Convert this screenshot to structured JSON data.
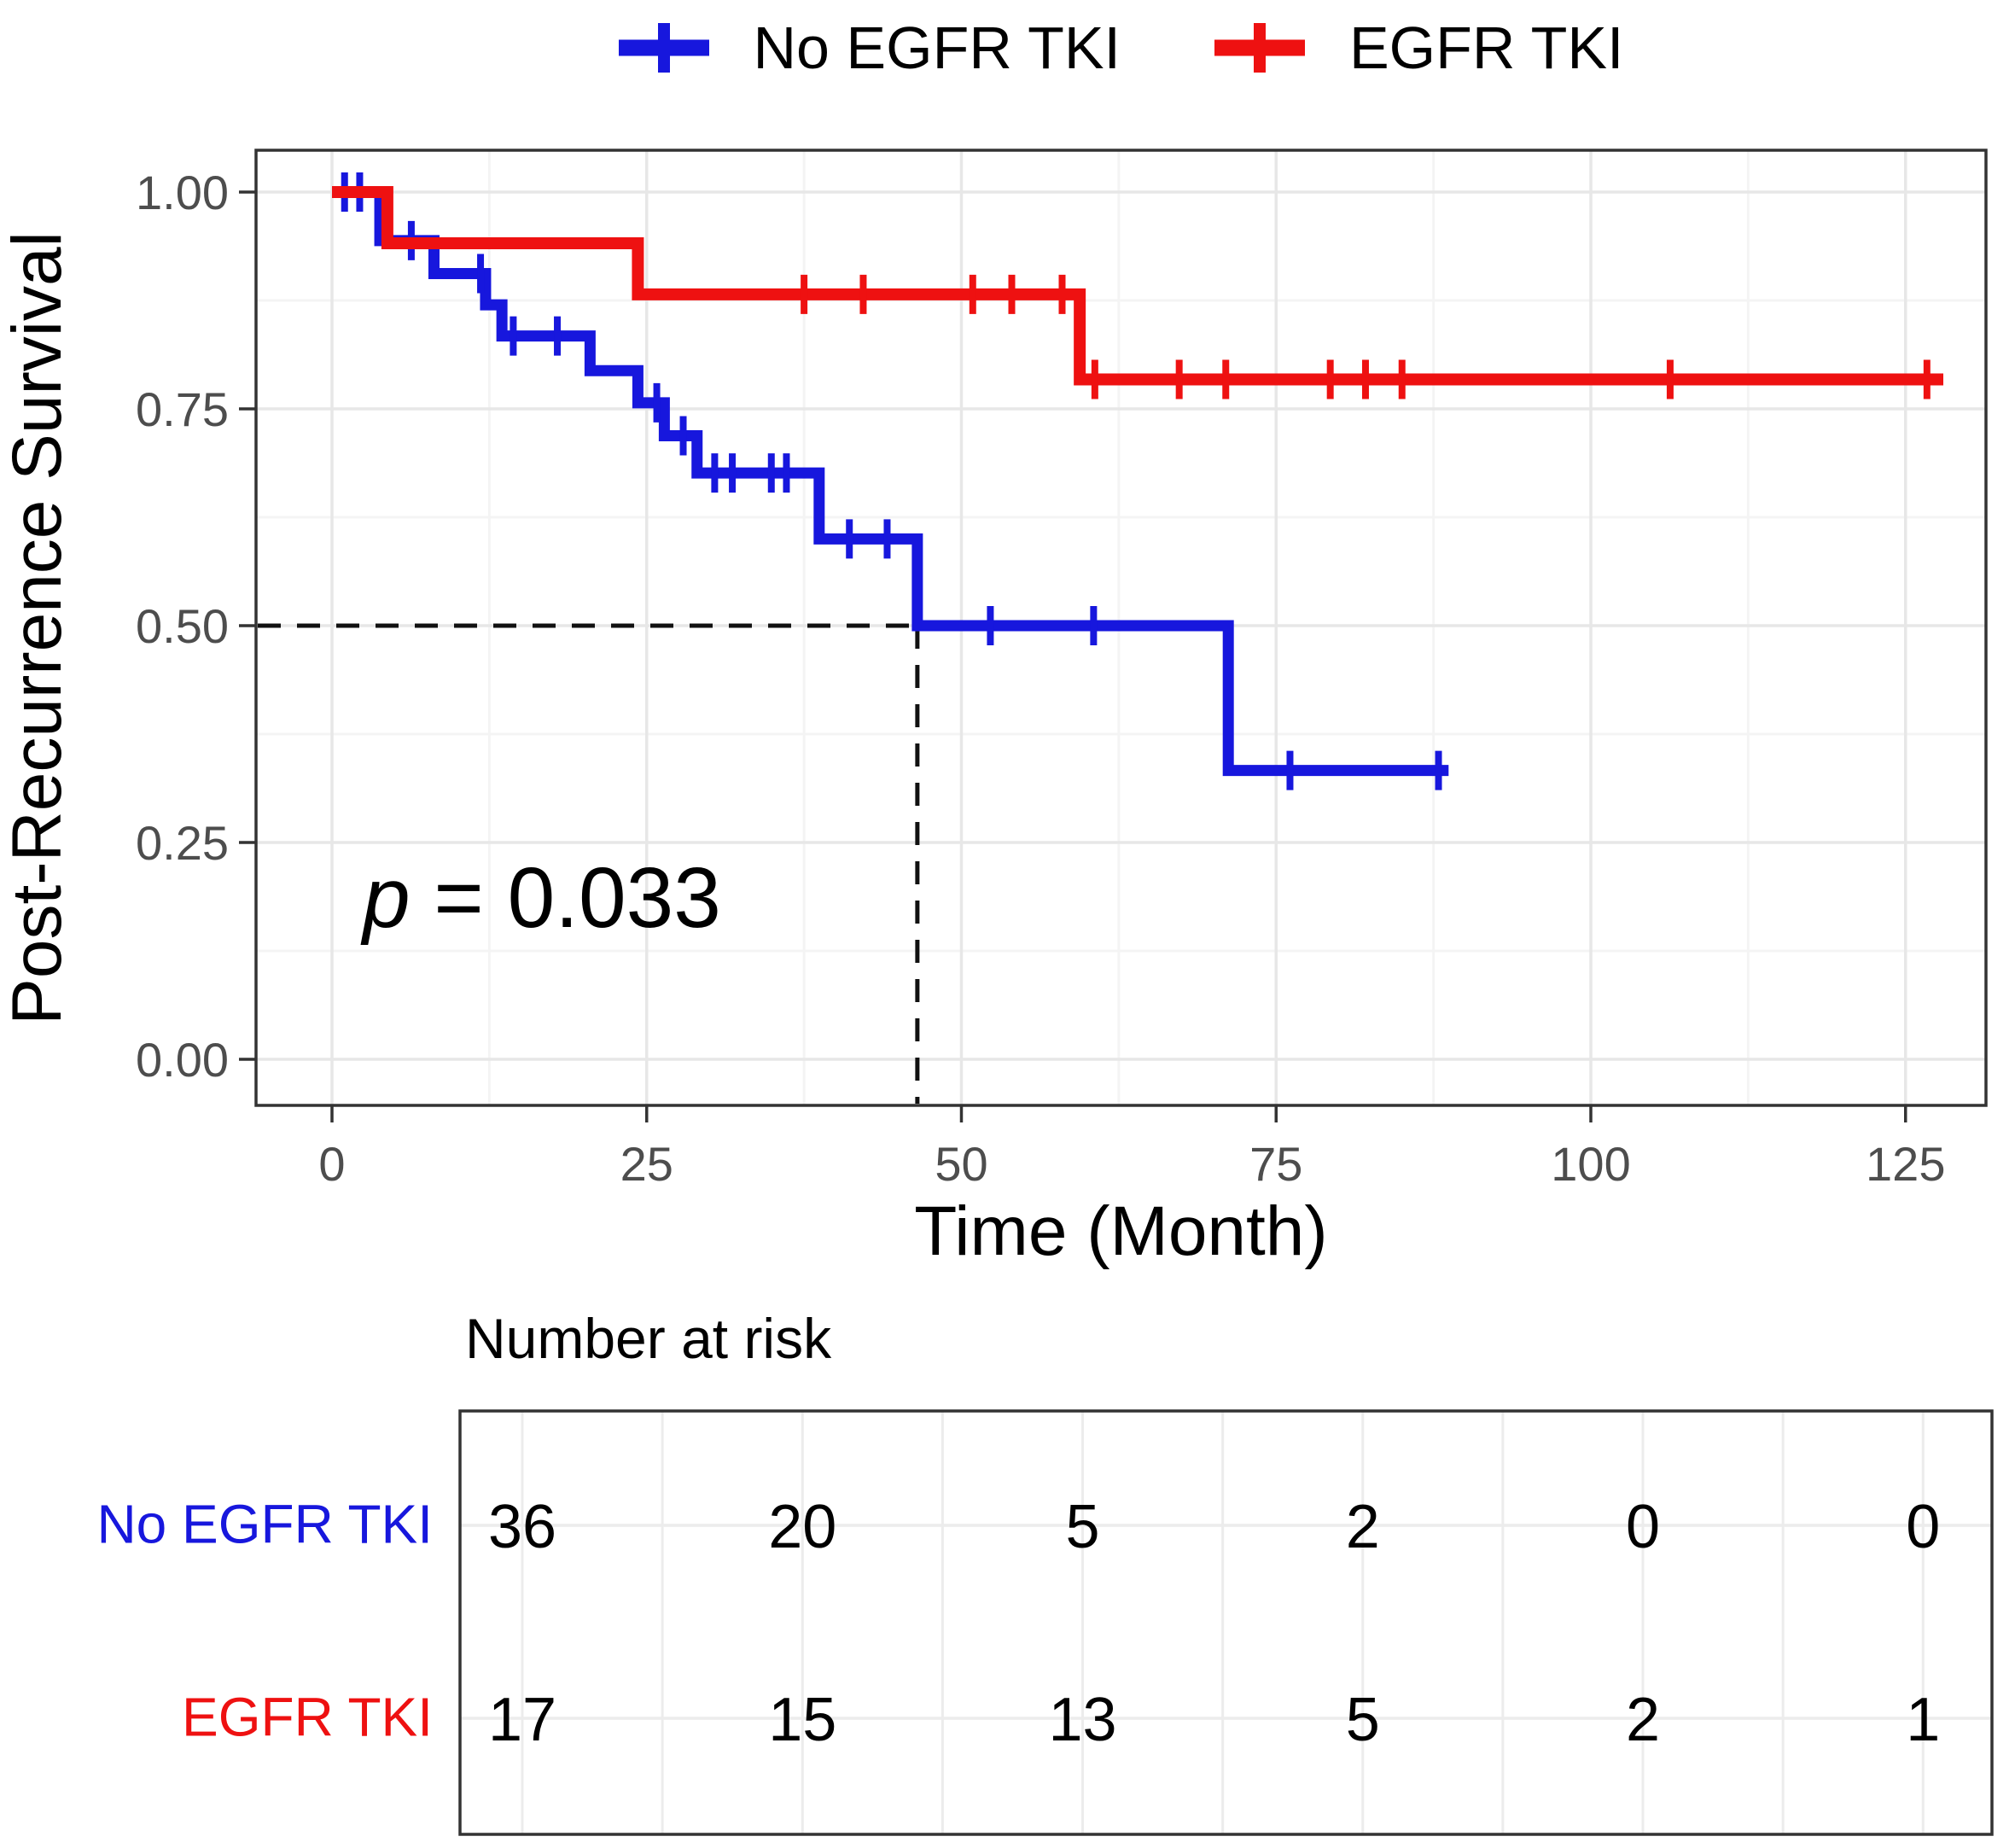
{
  "figure": {
    "background": "#ffffff"
  },
  "legend": {
    "items": [
      {
        "label": "No EGFR TKI",
        "color": "#1717dd"
      },
      {
        "label": "EGFR TKI",
        "color": "#ee1111"
      }
    ]
  },
  "chart_data": {
    "type": "line",
    "subtype": "kaplan-meier-step",
    "title": "",
    "xlabel": "Time (Month)",
    "ylabel": "Post-Recurrence Survival",
    "x_ticks": [
      0,
      25,
      50,
      75,
      100,
      125
    ],
    "x_tick_labels": [
      "0",
      "25",
      "50",
      "75",
      "100",
      "125"
    ],
    "y_ticks": [
      0,
      0.25,
      0.5,
      0.75,
      1
    ],
    "y_tick_labels": [
      "0.00",
      "0.25",
      "0.50",
      "0.75",
      "1.00"
    ],
    "xlim": [
      -6,
      131.4
    ],
    "ylim": [
      0,
      1
    ],
    "grid": true,
    "legend_position": "top",
    "p_label": {
      "italic": "p",
      "rest": " = 0.033"
    },
    "median_reference": {
      "time": 46.5,
      "survival": 0.5
    },
    "series": [
      {
        "name": "No EGFR TKI",
        "color": "#1717dd",
        "steps": [
          [
            0,
            1.0
          ],
          [
            3.8,
            0.944
          ],
          [
            8.1,
            0.906
          ],
          [
            12.2,
            0.87
          ],
          [
            13.5,
            0.834
          ],
          [
            20.5,
            0.794
          ],
          [
            24.3,
            0.757
          ],
          [
            26.4,
            0.719
          ],
          [
            29.0,
            0.676
          ],
          [
            38.7,
            0.6
          ],
          [
            46.5,
            0.5
          ],
          [
            71.2,
            0.333
          ]
        ],
        "end_time": 88.7,
        "censor_marks": [
          [
            1.0,
            1.0
          ],
          [
            2.2,
            1.0
          ],
          [
            6.3,
            0.944
          ],
          [
            11.8,
            0.906
          ],
          [
            14.4,
            0.834
          ],
          [
            17.9,
            0.834
          ],
          [
            25.8,
            0.757
          ],
          [
            27.9,
            0.719
          ],
          [
            30.4,
            0.676
          ],
          [
            31.8,
            0.676
          ],
          [
            34.9,
            0.676
          ],
          [
            36.1,
            0.676
          ],
          [
            41.1,
            0.6
          ],
          [
            44.1,
            0.6
          ],
          [
            52.3,
            0.5
          ],
          [
            60.5,
            0.5
          ],
          [
            76.1,
            0.333
          ],
          [
            87.9,
            0.333
          ]
        ]
      },
      {
        "name": "EGFR TKI",
        "color": "#ee1111",
        "steps": [
          [
            0,
            1.0
          ],
          [
            4.4,
            0.941
          ],
          [
            24.3,
            0.882
          ],
          [
            59.4,
            0.784
          ]
        ],
        "end_time": 128.0,
        "censor_marks": [
          [
            37.5,
            0.882
          ],
          [
            42.2,
            0.882
          ],
          [
            50.9,
            0.882
          ],
          [
            54.0,
            0.882
          ],
          [
            58.0,
            0.882
          ],
          [
            60.6,
            0.784
          ],
          [
            67.3,
            0.784
          ],
          [
            71.0,
            0.784
          ],
          [
            79.3,
            0.784
          ],
          [
            82.1,
            0.784
          ],
          [
            85.0,
            0.784
          ],
          [
            106.3,
            0.784
          ],
          [
            126.7,
            0.784
          ]
        ]
      }
    ],
    "risk_table": {
      "title": "Number at risk",
      "times": [
        0,
        25,
        50,
        75,
        100,
        125
      ],
      "rows": [
        {
          "label": "No EGFR TKI",
          "color": "#1717dd",
          "values": [
            "36",
            "20",
            "5",
            "2",
            "0",
            "0"
          ]
        },
        {
          "label": "EGFR TKI",
          "color": "#ee1111",
          "values": [
            "17",
            "15",
            "13",
            "5",
            "2",
            "1"
          ]
        }
      ]
    }
  },
  "colors": {
    "grid_major": "#e7e7e7",
    "grid_minor": "#f4f4f4",
    "panel_border": "#333333",
    "tick_mark": "#333333",
    "tick_label": "#4d4d4d",
    "dashed_line": "#111111",
    "text": "#000000"
  }
}
